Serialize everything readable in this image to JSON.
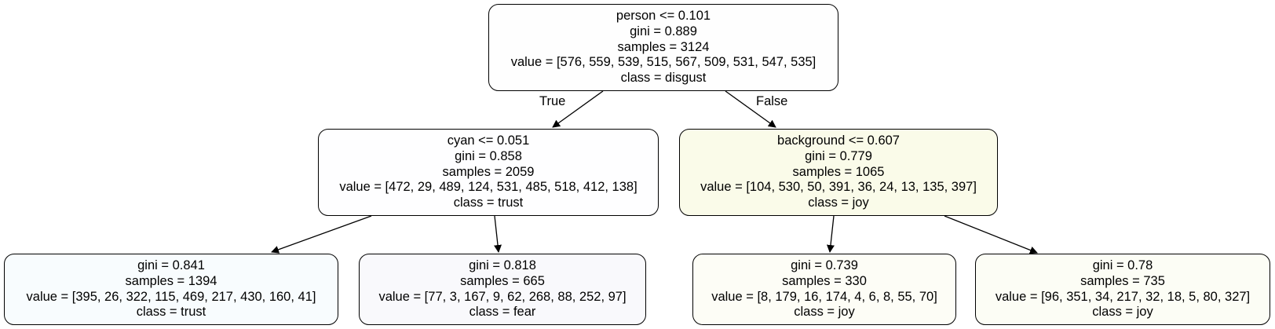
{
  "tree": {
    "root": {
      "split": "person <= 0.101",
      "gini": "gini = 0.889",
      "samples": "samples = 3124",
      "value": "value = [576, 559, 539, 515, 567, 509, 531, 547, 535]",
      "class": "class = disgust",
      "fill": "#fefefe"
    },
    "left": {
      "split": "cyan <= 0.051",
      "gini": "gini = 0.858",
      "samples": "samples = 2059",
      "value": "value = [472, 29, 489, 124, 531, 485, 518, 412, 138]",
      "class": "class = trust",
      "fill": "#fefeff"
    },
    "right": {
      "split": "background <= 0.607",
      "gini": "gini = 0.779",
      "samples": "samples = 1065",
      "value": "value = [104, 530, 50, 391, 36, 24, 13, 135, 397]",
      "class": "class = joy",
      "fill": "#fafbe9"
    },
    "left_left": {
      "gini": "gini = 0.841",
      "samples": "samples = 1394",
      "value": "value = [395, 26, 322, 115, 469, 217, 430, 160, 41]",
      "class": "class = trust",
      "fill": "#f8fcfe"
    },
    "left_right": {
      "gini": "gini = 0.818",
      "samples": "samples = 665",
      "value": "value = [77, 3, 167, 9, 62, 268, 88, 252, 97]",
      "class": "class = fear",
      "fill": "#f9f9fc"
    },
    "right_left": {
      "gini": "gini = 0.739",
      "samples": "samples = 330",
      "value": "value = [8, 179, 16, 174, 4, 6, 8, 55, 70]",
      "class": "class = joy",
      "fill": "#fdfdf6"
    },
    "right_right": {
      "gini": "gini = 0.78",
      "samples": "samples = 735",
      "value": "value = [96, 351, 34, 217, 32, 18, 5, 80, 327]",
      "class": "class = joy",
      "fill": "#fcfdf5"
    }
  },
  "edges": {
    "true_label": "True",
    "false_label": "False"
  }
}
